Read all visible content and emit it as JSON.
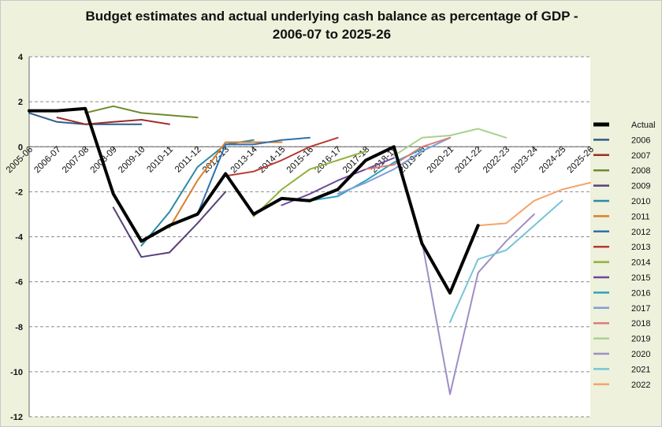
{
  "chart_data": {
    "type": "line",
    "title_line1": "Budget estimates and actual underlying cash balance as percentage of GDP -",
    "title_line2": "2006-07 to 2025-26",
    "xlabel": "",
    "ylabel": "",
    "categories": [
      "2005-06",
      "2006-07",
      "2007-08",
      "2008-09",
      "2009-10",
      "2010-11",
      "2011-12",
      "2012-13",
      "2013-14",
      "2014-15",
      "2015-16",
      "2016-17",
      "2017-18",
      "2018-19",
      "2019-20",
      "2020-21",
      "2021-22",
      "2022-23",
      "2023-24",
      "2024-25",
      "2025-26"
    ],
    "ylim": [
      -12,
      4
    ],
    "yticks": [
      4,
      2,
      0,
      -2,
      -4,
      -6,
      -8,
      -10,
      -12
    ],
    "grid": "horizontal dashed",
    "legend_position": "right",
    "series": [
      {
        "name": "Actual",
        "color": "#000000",
        "width": 4,
        "x": [
          "2005-06",
          "2006-07",
          "2007-08",
          "2008-09",
          "2009-10",
          "2010-11",
          "2011-12",
          "2012-13",
          "2013-14",
          "2014-15",
          "2015-16",
          "2016-17",
          "2017-18",
          "2018-19",
          "2019-20",
          "2020-21",
          "2021-22"
        ],
        "values": [
          1.6,
          1.6,
          1.7,
          -2.1,
          -4.2,
          -3.5,
          -3.0,
          -1.2,
          -3.0,
          -2.3,
          -2.4,
          -1.9,
          -0.6,
          0.0,
          -4.3,
          -6.5,
          -3.5
        ]
      },
      {
        "name": "2006",
        "color": "#2e5b8a",
        "width": 2,
        "x": [
          "2005-06",
          "2006-07",
          "2007-08",
          "2008-09",
          "2009-10"
        ],
        "values": [
          1.5,
          1.1,
          1.0,
          1.0,
          1.0
        ]
      },
      {
        "name": "2007",
        "color": "#9b2d2a",
        "width": 2,
        "x": [
          "2006-07",
          "2007-08",
          "2008-09",
          "2009-10",
          "2010-11"
        ],
        "values": [
          1.3,
          1.0,
          1.1,
          1.2,
          1.0
        ]
      },
      {
        "name": "2008",
        "color": "#6e8b2e",
        "width": 2,
        "x": [
          "2007-08",
          "2008-09",
          "2009-10",
          "2010-11",
          "2011-12"
        ],
        "values": [
          1.5,
          1.8,
          1.5,
          1.4,
          1.3
        ]
      },
      {
        "name": "2009",
        "color": "#5a3f7a",
        "width": 2,
        "x": [
          "2008-09",
          "2009-10",
          "2010-11",
          "2011-12",
          "2012-13"
        ],
        "values": [
          -2.7,
          -4.9,
          -4.7,
          -3.4,
          -2.0
        ]
      },
      {
        "name": "2010",
        "color": "#2b8aa5",
        "width": 2,
        "x": [
          "2009-10",
          "2010-11",
          "2011-12",
          "2012-13",
          "2013-14"
        ],
        "values": [
          -4.4,
          -2.9,
          -0.9,
          0.1,
          0.3
        ]
      },
      {
        "name": "2011",
        "color": "#d8802c",
        "width": 2,
        "x": [
          "2010-11",
          "2011-12",
          "2012-13",
          "2013-14",
          "2014-15"
        ],
        "values": [
          -3.6,
          -1.5,
          0.2,
          0.2,
          0.2
        ]
      },
      {
        "name": "2012",
        "color": "#2f6fb0",
        "width": 2,
        "x": [
          "2011-12",
          "2012-13",
          "2013-14",
          "2014-15",
          "2015-16"
        ],
        "values": [
          -3.0,
          0.1,
          0.1,
          0.3,
          0.4
        ]
      },
      {
        "name": "2013",
        "color": "#b83a33",
        "width": 2,
        "x": [
          "2012-13",
          "2013-14",
          "2014-15",
          "2015-16",
          "2016-17"
        ],
        "values": [
          -1.3,
          -1.1,
          -0.6,
          0.0,
          0.4
        ]
      },
      {
        "name": "2014",
        "color": "#8fb33a",
        "width": 2,
        "x": [
          "2013-14",
          "2014-15",
          "2015-16",
          "2016-17",
          "2017-18"
        ],
        "values": [
          -3.1,
          -1.9,
          -1.0,
          -0.6,
          -0.2
        ]
      },
      {
        "name": "2015",
        "color": "#6a4a9a",
        "width": 2,
        "x": [
          "2014-15",
          "2015-16",
          "2016-17",
          "2017-18",
          "2018-19"
        ],
        "values": [
          -2.6,
          -2.1,
          -1.5,
          -1.0,
          -0.5
        ]
      },
      {
        "name": "2016",
        "color": "#2ea3bf",
        "width": 2,
        "x": [
          "2015-16",
          "2016-17",
          "2017-18",
          "2018-19",
          "2019-20"
        ],
        "values": [
          -2.4,
          -2.2,
          -1.5,
          -0.7,
          -0.1
        ]
      },
      {
        "name": "2017",
        "color": "#7f9ed6",
        "width": 2,
        "x": [
          "2016-17",
          "2017-18",
          "2018-19",
          "2019-20",
          "2020-21"
        ],
        "values": [
          -2.1,
          -1.6,
          -1.0,
          -0.2,
          0.4
        ]
      },
      {
        "name": "2018",
        "color": "#d77f7a",
        "width": 2,
        "x": [
          "2017-18",
          "2018-19",
          "2019-20",
          "2020-21"
        ],
        "values": [
          -1.0,
          -0.8,
          0.0,
          0.4
        ]
      },
      {
        "name": "2019",
        "color": "#a9d18e",
        "width": 2,
        "x": [
          "2018-19",
          "2019-20",
          "2020-21",
          "2021-22",
          "2022-23"
        ],
        "values": [
          -0.4,
          0.4,
          0.5,
          0.8,
          0.4
        ]
      },
      {
        "name": "2020",
        "color": "#9f8ec6",
        "width": 2,
        "x": [
          "2019-20",
          "2020-21",
          "2021-22",
          "2022-23",
          "2023-24"
        ],
        "values": [
          -4.2,
          -11.0,
          -5.6,
          -4.2,
          -3.0
        ]
      },
      {
        "name": "2021",
        "color": "#76c4d8",
        "width": 2,
        "x": [
          "2020-21",
          "2021-22",
          "2022-23",
          "2023-24",
          "2024-25"
        ],
        "values": [
          -7.8,
          -5.0,
          -4.6,
          -3.5,
          -2.4
        ]
      },
      {
        "name": "2022",
        "color": "#f4a46c",
        "width": 2,
        "x": [
          "2021-22",
          "2022-23",
          "2023-24",
          "2024-25",
          "2025-26"
        ],
        "values": [
          -3.5,
          -3.4,
          -2.4,
          -1.9,
          -1.6
        ]
      }
    ]
  }
}
